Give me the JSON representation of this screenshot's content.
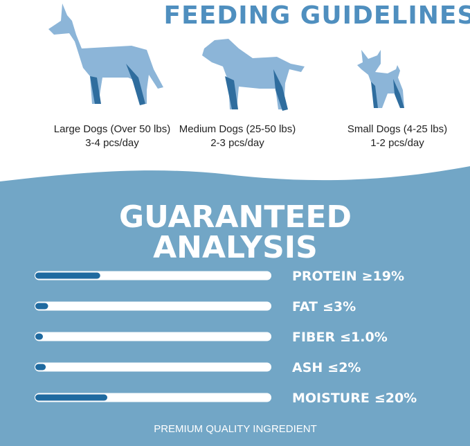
{
  "header": {
    "title": "FEEDING GUIDELINES"
  },
  "dogs": [
    {
      "size": "Large Dogs (Over 50 lbs)",
      "amount": "3-4 pcs/day"
    },
    {
      "size": "Medium Dogs (25-50 lbs)",
      "amount": "2-3 pcs/day"
    },
    {
      "size": "Small Dogs (4-25 lbs)",
      "amount": "1-2 pcs/day"
    }
  ],
  "analysis": {
    "title_line1": "GUARANTEED",
    "title_line2": "ANALYSIS",
    "nutrients": [
      {
        "name": "PROTEIN",
        "label": "≥19%",
        "level": 28
      },
      {
        "name": "FAT",
        "label": "≤3%",
        "level": 6
      },
      {
        "name": "FIBER",
        "label": "≤1.0%",
        "level": 3
      },
      {
        "name": "ASH",
        "label": "≤2%",
        "level": 5
      },
      {
        "name": "MOISTURE",
        "label": "≤20%",
        "level": 31
      }
    ],
    "footer": "PREMIUM QUALITY INGREDIENT"
  }
}
